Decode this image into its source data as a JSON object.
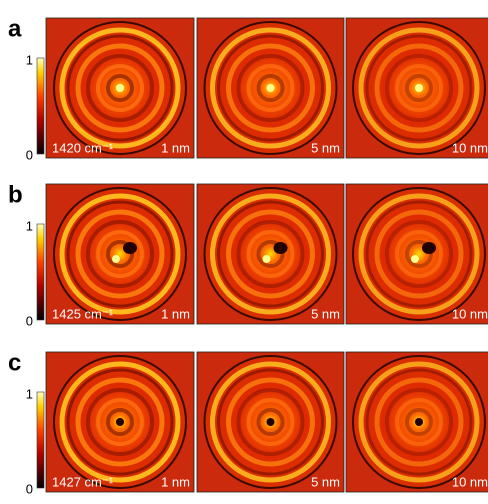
{
  "rows": [
    {
      "label": "a",
      "colorbar": {
        "max": "1",
        "min": "0"
      },
      "panels": [
        {
          "wavenumber": "1420 cm⁻¹",
          "distance": "1 nm"
        },
        {
          "distance": "5 nm"
        },
        {
          "distance": "10 nm"
        }
      ]
    },
    {
      "label": "b",
      "colorbar": {
        "max": "1",
        "min": "0"
      },
      "panels": [
        {
          "wavenumber": "1425 cm⁻¹",
          "distance": "1 nm"
        },
        {
          "distance": "5 nm"
        },
        {
          "distance": "10 nm"
        }
      ]
    },
    {
      "label": "c",
      "colorbar": {
        "max": "1",
        "min": "0"
      },
      "panels": [
        {
          "wavenumber": "1427 cm⁻¹",
          "distance": "1 nm"
        },
        {
          "distance": "5 nm"
        },
        {
          "distance": "10 nm"
        }
      ]
    }
  ]
}
